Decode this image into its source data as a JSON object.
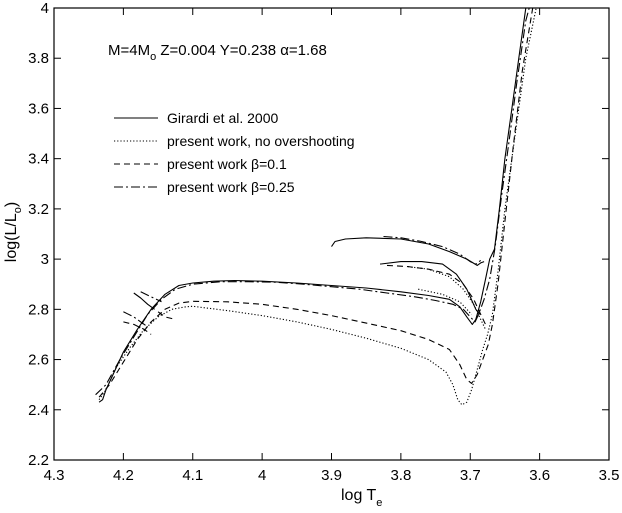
{
  "chart_data": {
    "type": "line",
    "title": "",
    "annotation": {
      "parts": [
        {
          "text": "M=4M",
          "kind": "plain"
        },
        {
          "text": "o",
          "kind": "sub"
        },
        {
          "text": "  Z=0.004  Y=0.238  ",
          "kind": "plain"
        },
        {
          "text": "α",
          "kind": "plain"
        },
        {
          "text": "=1.68",
          "kind": "plain"
        }
      ]
    },
    "xlabel": {
      "main": "log T",
      "sub": "e"
    },
    "ylabel": {
      "main": "log(L/L",
      "sub": "o",
      "close": ")"
    },
    "xlim": [
      4.3,
      3.5
    ],
    "ylim": [
      2.2,
      4.0
    ],
    "x_reversed": true,
    "xticks": [
      4.3,
      4.2,
      4.1,
      4.0,
      3.9,
      3.8,
      3.7,
      3.6,
      3.5
    ],
    "xtick_labels": [
      "4.3",
      "4.2",
      "4.1",
      "4",
      "3.9",
      "3.8",
      "3.7",
      "3.6",
      "3.5"
    ],
    "yticks": [
      2.2,
      2.4,
      2.6,
      2.8,
      3.0,
      3.2,
      3.4,
      3.6,
      3.8,
      4.0
    ],
    "ytick_labels": [
      "2.2",
      "2.4",
      "2.6",
      "2.8",
      "3",
      "3.2",
      "3.4",
      "3.6",
      "3.8",
      "4"
    ],
    "grid": false,
    "legend_position": "upper-left",
    "series": [
      {
        "name": "Girardi et al. 2000",
        "style": "solid",
        "segments": [
          [
            [
              4.235,
              2.43
            ],
            [
              4.23,
              2.44
            ],
            [
              4.225,
              2.48
            ],
            [
              4.215,
              2.54
            ],
            [
              4.2,
              2.63
            ],
            [
              4.18,
              2.72
            ],
            [
              4.16,
              2.8
            ],
            [
              4.14,
              2.86
            ],
            [
              4.12,
              2.895
            ],
            [
              4.1,
              2.905
            ],
            [
              4.07,
              2.912
            ],
            [
              4.04,
              2.915
            ],
            [
              4.0,
              2.912
            ],
            [
              3.95,
              2.905
            ],
            [
              3.9,
              2.895
            ],
            [
              3.85,
              2.885
            ],
            [
              3.8,
              2.87
            ],
            [
              3.76,
              2.855
            ],
            [
              3.73,
              2.84
            ],
            [
              3.715,
              2.81
            ],
            [
              3.705,
              2.77
            ],
            [
              3.697,
              2.74
            ],
            [
              3.692,
              2.76
            ],
            [
              3.685,
              2.83
            ],
            [
              3.678,
              2.92
            ],
            [
              3.672,
              3.0
            ],
            [
              3.665,
              3.04
            ],
            [
              3.658,
              3.2
            ],
            [
              3.65,
              3.4
            ],
            [
              3.64,
              3.6
            ],
            [
              3.63,
              3.8
            ],
            [
              3.62,
              4.0
            ]
          ],
          [
            [
              3.9,
              3.05
            ],
            [
              3.895,
              3.07
            ],
            [
              3.88,
              3.08
            ],
            [
              3.85,
              3.085
            ],
            [
              3.8,
              3.08
            ],
            [
              3.76,
              3.06
            ],
            [
              3.73,
              3.03
            ],
            [
              3.705,
              3.0
            ],
            [
              3.69,
              2.975
            ],
            [
              3.685,
              2.985
            ],
            [
              3.68,
              2.99
            ]
          ],
          [
            [
              3.83,
              2.98
            ],
            [
              3.8,
              2.99
            ],
            [
              3.77,
              2.99
            ],
            [
              3.74,
              2.98
            ],
            [
              3.72,
              2.94
            ],
            [
              3.705,
              2.88
            ],
            [
              3.692,
              2.8
            ],
            [
              3.686,
              2.78
            ]
          ],
          [
            [
              4.185,
              2.865
            ],
            [
              4.175,
              2.845
            ],
            [
              4.165,
              2.82
            ],
            [
              4.155,
              2.8
            ]
          ]
        ]
      },
      {
        "name": "present work, no overshooting",
        "style": "dotted",
        "segments": [
          [
            [
              4.235,
              2.44
            ],
            [
              4.225,
              2.48
            ],
            [
              4.21,
              2.57
            ],
            [
              4.19,
              2.65
            ],
            [
              4.17,
              2.72
            ],
            [
              4.15,
              2.77
            ],
            [
              4.13,
              2.8
            ],
            [
              4.11,
              2.81
            ],
            [
              4.1,
              2.812
            ],
            [
              4.05,
              2.795
            ],
            [
              4.0,
              2.775
            ],
            [
              3.95,
              2.75
            ],
            [
              3.9,
              2.72
            ],
            [
              3.85,
              2.685
            ],
            [
              3.8,
              2.645
            ],
            [
              3.76,
              2.6
            ],
            [
              3.735,
              2.55
            ],
            [
              3.725,
              2.5
            ],
            [
              3.718,
              2.44
            ],
            [
              3.712,
              2.42
            ],
            [
              3.705,
              2.43
            ],
            [
              3.698,
              2.48
            ],
            [
              3.69,
              2.56
            ],
            [
              3.682,
              2.64
            ],
            [
              3.675,
              2.7
            ],
            [
              3.668,
              2.78
            ],
            [
              3.66,
              2.95
            ],
            [
              3.65,
              3.2
            ],
            [
              3.635,
              3.5
            ],
            [
              3.62,
              3.8
            ],
            [
              3.605,
              4.0
            ]
          ],
          [
            [
              3.79,
              2.97
            ],
            [
              3.76,
              2.96
            ],
            [
              3.73,
              2.93
            ],
            [
              3.71,
              2.88
            ],
            [
              3.695,
              2.82
            ],
            [
              3.685,
              2.76
            ],
            [
              3.678,
              2.72
            ]
          ],
          [
            [
              3.775,
              2.88
            ],
            [
              3.74,
              2.86
            ],
            [
              3.715,
              2.83
            ],
            [
              3.698,
              2.78
            ]
          ]
        ]
      },
      {
        "name": "present work β=0.1",
        "style": "dashed",
        "segments": [
          [
            [
              4.235,
              2.45
            ],
            [
              4.22,
              2.5
            ],
            [
              4.2,
              2.59
            ],
            [
              4.18,
              2.68
            ],
            [
              4.16,
              2.75
            ],
            [
              4.14,
              2.8
            ],
            [
              4.12,
              2.825
            ],
            [
              4.1,
              2.832
            ],
            [
              4.05,
              2.83
            ],
            [
              4.0,
              2.82
            ],
            [
              3.95,
              2.8
            ],
            [
              3.9,
              2.775
            ],
            [
              3.85,
              2.745
            ],
            [
              3.8,
              2.715
            ],
            [
              3.76,
              2.68
            ],
            [
              3.73,
              2.64
            ],
            [
              3.715,
              2.58
            ],
            [
              3.705,
              2.52
            ],
            [
              3.698,
              2.505
            ],
            [
              3.69,
              2.54
            ],
            [
              3.682,
              2.6
            ],
            [
              3.674,
              2.66
            ],
            [
              3.668,
              2.74
            ],
            [
              3.66,
              2.9
            ],
            [
              3.65,
              3.15
            ],
            [
              3.638,
              3.45
            ],
            [
              3.625,
              3.75
            ],
            [
              3.61,
              4.0
            ]
          ],
          [
            [
              3.82,
              2.975
            ],
            [
              3.79,
              2.97
            ],
            [
              3.76,
              2.96
            ],
            [
              3.73,
              2.94
            ],
            [
              3.71,
              2.9
            ],
            [
              3.695,
              2.84
            ],
            [
              3.685,
              2.78
            ],
            [
              3.678,
              2.74
            ]
          ],
          [
            [
              4.2,
              2.75
            ],
            [
              4.185,
              2.74
            ],
            [
              4.17,
              2.72
            ],
            [
              4.16,
              2.7
            ]
          ],
          [
            [
              4.15,
              2.79
            ],
            [
              4.14,
              2.77
            ],
            [
              4.125,
              2.76
            ]
          ]
        ]
      },
      {
        "name": "present work  β=0.25",
        "style": "dashdot",
        "segments": [
          [
            [
              4.24,
              2.46
            ],
            [
              4.225,
              2.5
            ],
            [
              4.205,
              2.6
            ],
            [
              4.185,
              2.69
            ],
            [
              4.165,
              2.78
            ],
            [
              4.145,
              2.84
            ],
            [
              4.125,
              2.88
            ],
            [
              4.1,
              2.9
            ],
            [
              4.06,
              2.91
            ],
            [
              4.02,
              2.91
            ],
            [
              3.98,
              2.908
            ],
            [
              3.94,
              2.9
            ],
            [
              3.9,
              2.89
            ],
            [
              3.86,
              2.88
            ],
            [
              3.82,
              2.865
            ],
            [
              3.78,
              2.85
            ],
            [
              3.75,
              2.835
            ],
            [
              3.725,
              2.82
            ],
            [
              3.71,
              2.8
            ],
            [
              3.7,
              2.77
            ],
            [
              3.693,
              2.75
            ],
            [
              3.688,
              2.78
            ],
            [
              3.68,
              2.84
            ],
            [
              3.672,
              2.92
            ],
            [
              3.664,
              3.05
            ],
            [
              3.655,
              3.25
            ],
            [
              3.645,
              3.45
            ],
            [
              3.633,
              3.7
            ],
            [
              3.62,
              3.95
            ],
            [
              3.615,
              4.0
            ]
          ],
          [
            [
              3.825,
              3.09
            ],
            [
              3.8,
              3.085
            ],
            [
              3.77,
              3.07
            ],
            [
              3.74,
              3.05
            ],
            [
              3.715,
              3.02
            ],
            [
              3.7,
              2.99
            ],
            [
              3.692,
              2.98
            ],
            [
              3.685,
              2.995
            ]
          ],
          [
            [
              4.2,
              2.79
            ],
            [
              4.185,
              2.77
            ],
            [
              4.175,
              2.75
            ],
            [
              4.165,
              2.73
            ]
          ],
          [
            [
              4.175,
              2.87
            ],
            [
              4.16,
              2.85
            ],
            [
              4.145,
              2.83
            ]
          ]
        ]
      }
    ]
  }
}
